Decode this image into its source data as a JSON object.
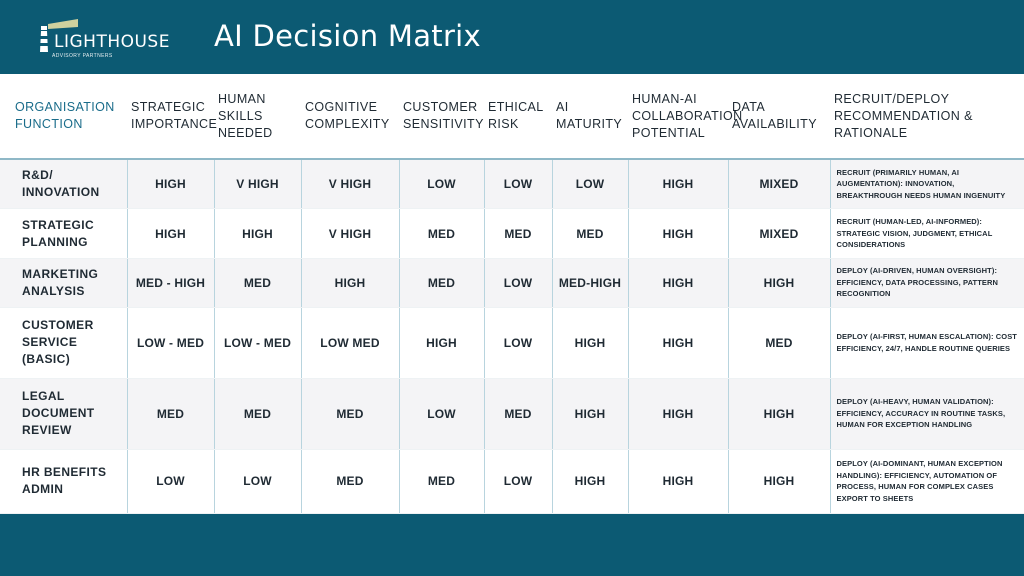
{
  "header": {
    "logo_name": "LIGHTHOUSE",
    "logo_sub": "ADVISORY PARTNERS",
    "title": "AI Decision Matrix"
  },
  "columns": [
    "ORGANISATION FUNCTION",
    "STRATEGIC IMPORTANCE",
    "HUMAN SKILLS NEEDED",
    "COGNITIVE COMPLEXITY",
    "CUSTOMER SENSITIVITY",
    "ETHICAL RISK",
    "AI MATURITY",
    "HUMAN-AI COLLABORATION POTENTIAL",
    "DATA AVAILABILITY",
    "RECRUIT/DEPLOY RECOMMENDATION & RATIONALE"
  ],
  "rows": [
    {
      "function": "R&D/ INNOVATION",
      "values": [
        "HIGH",
        "V HIGH",
        "V HIGH",
        "LOW",
        "LOW",
        "LOW",
        "HIGH",
        "MIXED"
      ],
      "rationale": "RECRUIT (PRIMARILY HUMAN, AI AUGMENTATION): INNOVATION, BREAKTHROUGH NEEDS HUMAN INGENUITY"
    },
    {
      "function": "STRATEGIC PLANNING",
      "values": [
        "HIGH",
        "HIGH",
        "V HIGH",
        "MED",
        "MED",
        "MED",
        "HIGH",
        "MIXED"
      ],
      "rationale": "RECRUIT (HUMAN-LED, AI-INFORMED): STRATEGIC VISION, JUDGMENT, ETHICAL CONSIDERATIONS"
    },
    {
      "function": "MARKETING ANALYSIS",
      "values": [
        "MED - HIGH",
        "MED",
        "HIGH",
        "MED",
        "LOW",
        "MED-HIGH",
        "HIGH",
        "HIGH"
      ],
      "rationale": "DEPLOY (AI-DRIVEN, HUMAN OVERSIGHT): EFFICIENCY, DATA PROCESSING, PATTERN RECOGNITION"
    },
    {
      "function": "CUSTOMER SERVICE (BASIC)",
      "values": [
        "LOW - MED",
        "LOW - MED",
        "LOW MED",
        "HIGH",
        "LOW",
        "HIGH",
        "HIGH",
        "MED"
      ],
      "rationale": "DEPLOY (AI-FIRST, HUMAN ESCALATION): COST EFFICIENCY, 24/7, HANDLE ROUTINE QUERIES"
    },
    {
      "function": "LEGAL DOCUMENT REVIEW",
      "values": [
        "MED",
        "MED",
        "MED",
        "LOW",
        "MED",
        "HIGH",
        "HIGH",
        "HIGH"
      ],
      "rationale": "DEPLOY (AI-HEAVY, HUMAN VALIDATION): EFFICIENCY, ACCURACY IN ROUTINE TASKS, HUMAN FOR EXCEPTION HANDLING"
    },
    {
      "function": "HR BENEFITS ADMIN",
      "values": [
        "LOW",
        "LOW",
        "MED",
        "MED",
        "LOW",
        "HIGH",
        "HIGH",
        "HIGH"
      ],
      "rationale": "DEPLOY (AI-DOMINANT, HUMAN EXCEPTION HANDLING): EFFICIENCY, AUTOMATION OF PROCESS, HUMAN FOR COMPLEX CASES EXPORT TO SHEETS"
    }
  ]
}
